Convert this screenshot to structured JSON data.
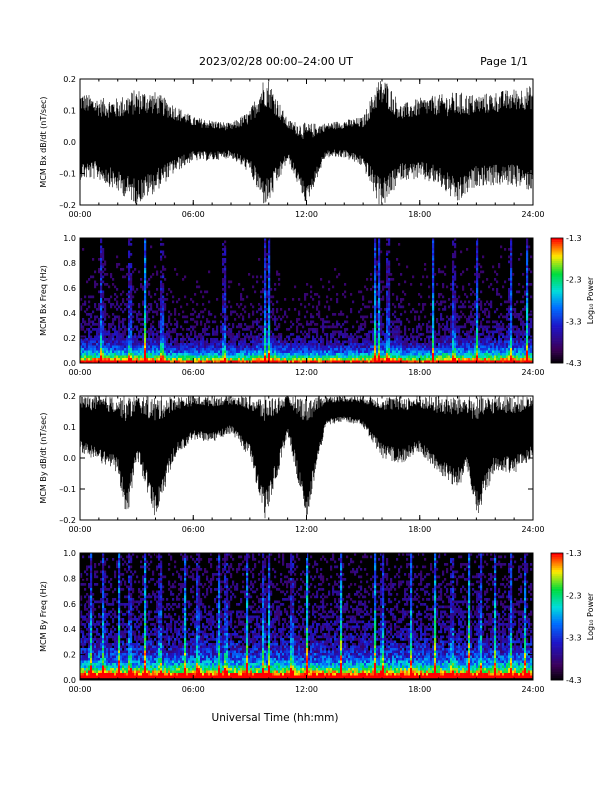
{
  "header": {
    "title": "2023/02/28  00:00–24:00 UT",
    "page": "Page 1/1"
  },
  "xaxis_label": "Universal Time (hh:mm)",
  "colorbar": {
    "label": "Log₁₀ Power",
    "ticks": [
      "-1.3",
      "-2.3",
      "-3.3",
      "-4.3"
    ]
  },
  "chart_data": [
    {
      "type": "line",
      "ylabel": "MCM Bx dB/dt (nT/sec)",
      "xlim": [
        0,
        24
      ],
      "ylim": [
        -0.2,
        0.2
      ],
      "x_ticks": [
        "00:00",
        "06:00",
        "12:00",
        "18:00",
        "24:00"
      ],
      "y_ticks": [
        "0.2",
        "0.1",
        "0.0",
        "–0.1",
        "–0.2"
      ],
      "series": [
        {
          "x": [
            0,
            1,
            2,
            3,
            4,
            5,
            6,
            7,
            8,
            9,
            9.7,
            10,
            11,
            12,
            13,
            14,
            15,
            15.8,
            16.2,
            17,
            18,
            19,
            20,
            21,
            22,
            23,
            24
          ],
          "y_max": [
            0.16,
            0.14,
            0.14,
            0.17,
            0.16,
            0.12,
            0.08,
            0.07,
            0.06,
            0.1,
            0.2,
            0.2,
            0.07,
            0.06,
            0.06,
            0.07,
            0.08,
            0.2,
            0.2,
            0.12,
            0.14,
            0.15,
            0.16,
            0.15,
            0.16,
            0.17,
            0.18
          ],
          "y_min": [
            -0.12,
            -0.12,
            -0.16,
            -0.2,
            -0.16,
            -0.1,
            -0.06,
            -0.06,
            -0.05,
            -0.1,
            -0.2,
            -0.2,
            -0.06,
            -0.2,
            -0.05,
            -0.05,
            -0.08,
            -0.2,
            -0.2,
            -0.12,
            -0.12,
            -0.14,
            -0.2,
            -0.14,
            -0.14,
            -0.14,
            -0.16
          ]
        }
      ]
    },
    {
      "type": "heatmap",
      "ylabel": "MCM Bx Freq (Hz)",
      "xlim": [
        0,
        24
      ],
      "ylim": [
        0,
        1
      ],
      "x_ticks": [
        "00:00",
        "06:00",
        "12:00",
        "18:00",
        "24:00"
      ],
      "y_ticks": [
        "1.0",
        "0.8",
        "0.6",
        "0.4",
        "0.2",
        "0.0"
      ],
      "zlim": [
        -4.3,
        -1.3
      ],
      "bright_times": [
        1.1,
        2.6,
        3.4,
        4.3,
        7.6,
        9.8,
        10.0,
        15.6,
        15.8,
        16.3,
        18.7,
        19.8,
        21.0,
        22.8,
        23.7
      ],
      "elevated_intervals": [
        [
          0,
          4.5
        ],
        [
          9.3,
          10.6
        ],
        [
          15.3,
          17.0
        ],
        [
          19.0,
          24
        ]
      ]
    },
    {
      "type": "line",
      "ylabel": "MCM By dB/dt (nT/sec)",
      "xlim": [
        0,
        24
      ],
      "ylim": [
        -0.2,
        0.2
      ],
      "x_ticks": [
        "00:00",
        "06:00",
        "12:00",
        "18:00",
        "24:00"
      ],
      "y_ticks": [
        "0.2",
        "0.1",
        "0.0",
        "–0.1",
        "–0.2"
      ],
      "series": [
        {
          "x": [
            0,
            1,
            2,
            2.5,
            3,
            4,
            5,
            6,
            7,
            8,
            9,
            9.8,
            10.5,
            11,
            12,
            13,
            14,
            15,
            16,
            17,
            18,
            19,
            20,
            20.5,
            21,
            22,
            23,
            24
          ],
          "y_max": [
            0.2,
            0.2,
            0.2,
            0.2,
            0.2,
            0.2,
            0.2,
            0.2,
            0.2,
            0.2,
            0.2,
            0.2,
            0.2,
            0.2,
            0.2,
            0.2,
            0.2,
            0.2,
            0.2,
            0.2,
            0.2,
            0.2,
            0.2,
            0.2,
            0.2,
            0.2,
            0.2,
            0.2
          ],
          "y_min": [
            0.02,
            -0.02,
            -0.05,
            -0.2,
            0.0,
            -0.2,
            0.0,
            0.06,
            0.05,
            0.08,
            0.0,
            -0.2,
            -0.05,
            0.08,
            -0.2,
            0.1,
            0.12,
            0.1,
            0.0,
            -0.02,
            0.02,
            -0.06,
            -0.1,
            -0.05,
            -0.2,
            -0.04,
            -0.05,
            0.0
          ]
        }
      ]
    },
    {
      "type": "heatmap",
      "ylabel": "MCM By Freq (Hz)",
      "xlim": [
        0,
        24
      ],
      "ylim": [
        0,
        1
      ],
      "x_ticks": [
        "00:00",
        "06:00",
        "12:00",
        "18:00",
        "24:00"
      ],
      "y_ticks": [
        "1.0",
        "0.8",
        "0.6",
        "0.4",
        "0.2",
        "0.0"
      ],
      "zlim": [
        -4.3,
        -1.3
      ],
      "bright_times": [
        0.5,
        1.2,
        2.0,
        2.6,
        3.4,
        4.2,
        5.5,
        6.2,
        7.3,
        7.7,
        8.8,
        9.7,
        10.0,
        11.2,
        12.0,
        13.8,
        15.6,
        16.0,
        17.5,
        18.8,
        19.7,
        20.6,
        21.2,
        22.0,
        22.8,
        23.6
      ],
      "elevated_intervals": [
        [
          0,
          24
        ]
      ]
    }
  ]
}
